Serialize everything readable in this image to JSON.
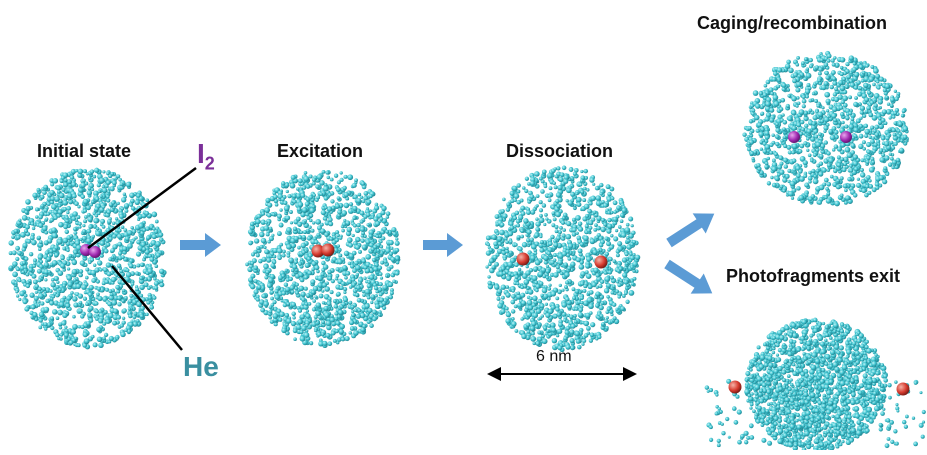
{
  "stages": {
    "initial": "Initial state",
    "excitation": "Excitation",
    "dissociation": "Dissociation",
    "caging": "Caging/recombination",
    "exit": "Photofragments exit"
  },
  "molecule_label": {
    "base": "I",
    "subscript": "2"
  },
  "helium_label": "He",
  "scale_label": "6 nm",
  "colors": {
    "helium": "#3ec3cf",
    "helium_dark": "#1f8f9c",
    "iodine_purple": "#a02ab0",
    "iodine_red": "#d63a2e",
    "arrow": "#5b9bd5",
    "label_purple": "#7b2f99",
    "label_teal": "#3a8fa0"
  }
}
